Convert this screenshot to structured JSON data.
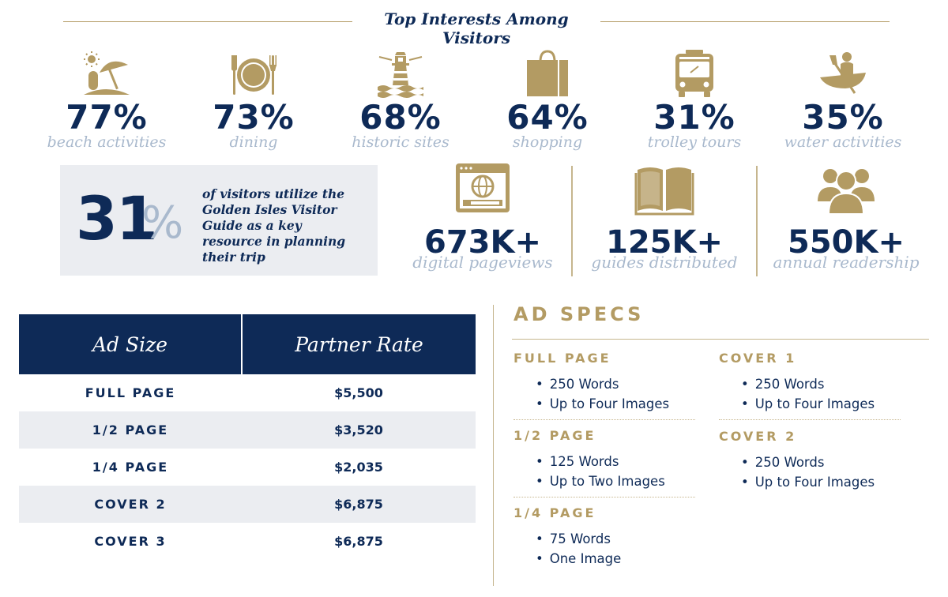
{
  "header": {
    "title": "Top Interests Among Visitors"
  },
  "interests": [
    {
      "pct": "77%",
      "label": "beach activities",
      "icon": "beach-umbrella-icon"
    },
    {
      "pct": "73%",
      "label": "dining",
      "icon": "plate-fork-knife-icon"
    },
    {
      "pct": "68%",
      "label": "historic sites",
      "icon": "lighthouse-icon"
    },
    {
      "pct": "64%",
      "label": "shopping",
      "icon": "shopping-bag-icon"
    },
    {
      "pct": "31%",
      "label": "trolley tours",
      "icon": "trolley-icon"
    },
    {
      "pct": "35%",
      "label": "water activities",
      "icon": "canoe-icon"
    }
  ],
  "guide": {
    "number": "31",
    "percent_sign": "%",
    "text": "of visitors utilize the Golden Isles Visitor Guide as a key resource in planning their trip"
  },
  "stats": [
    {
      "value": "673K+",
      "label": "digital pageviews",
      "icon": "web-browser-icon"
    },
    {
      "value": "125K+",
      "label": "guides distributed",
      "icon": "open-book-icon"
    },
    {
      "value": "550K+",
      "label": "annual readership",
      "icon": "people-group-icon"
    }
  ],
  "rates": {
    "headers": [
      "Ad Size",
      "Partner Rate"
    ],
    "rows": [
      {
        "size": "FULL PAGE",
        "rate": "$5,500"
      },
      {
        "size": "1/2 PAGE",
        "rate": "$3,520"
      },
      {
        "size": "1/4 PAGE",
        "rate": "$2,035"
      },
      {
        "size": "COVER 2",
        "rate": "$6,875"
      },
      {
        "size": "COVER 3",
        "rate": "$6,875"
      }
    ]
  },
  "specs": {
    "title": "AD SPECS",
    "items": [
      {
        "heading": "FULL PAGE",
        "bullets": [
          "250 Words",
          "Up to Four Images"
        ]
      },
      {
        "heading": "1/2 PAGE",
        "bullets": [
          "125 Words",
          "Up to Two Images"
        ]
      },
      {
        "heading": "1/4 PAGE",
        "bullets": [
          "75 Words",
          "One Image"
        ]
      },
      {
        "heading": "COVER 1",
        "bullets": [
          "250 Words",
          "Up to Four Images"
        ]
      },
      {
        "heading": "COVER 2",
        "bullets": [
          "250 Words",
          "Up to Four Images"
        ]
      }
    ]
  },
  "colors": {
    "navy": "#0e2a57",
    "gold": "#b39b63",
    "light_blue": "#a9b9cd",
    "panel_gray": "#ebedf1"
  }
}
